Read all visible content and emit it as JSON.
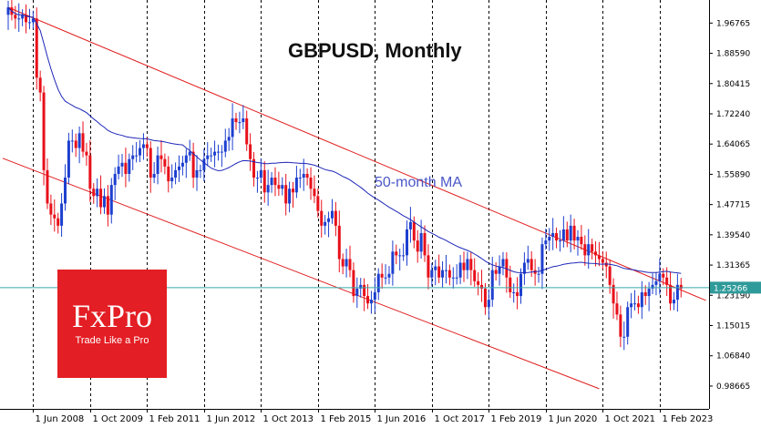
{
  "chart_data": {
    "type": "candlestick",
    "title": "GBPUSD, Monthly",
    "annotation": "50-month MA",
    "current_price": "1.25266",
    "ylim": [
      0.925,
      2.03
    ],
    "y_ticks": [
      "1.96765",
      "1.88590",
      "1.80415",
      "1.72240",
      "1.64065",
      "1.55890",
      "1.47715",
      "1.39540",
      "1.31365",
      "1.23190",
      "1.15015",
      "1.06840",
      "0.98665"
    ],
    "x_ticks": [
      "1 Jun 2008",
      "1 Oct 2009",
      "1 Feb 2011",
      "1 Jun 2012",
      "1 Oct 2013",
      "1 Feb 2015",
      "1 Jun 2016",
      "1 Oct 2017",
      "1 Feb 2019",
      "1 Jun 2020",
      "1 Oct 2021",
      "1 Feb 2023"
    ],
    "x_start": "2007-11",
    "x_end": "2023-11",
    "closes": [
      2.01,
      1.99,
      1.98,
      1.98,
      1.99,
      1.97,
      1.97,
      1.98,
      1.82,
      1.78,
      1.57,
      1.48,
      1.45,
      1.44,
      1.42,
      1.48,
      1.55,
      1.65,
      1.65,
      1.63,
      1.67,
      1.62,
      1.61,
      1.52,
      1.5,
      1.52,
      1.47,
      1.5,
      1.45,
      1.53,
      1.56,
      1.58,
      1.59,
      1.56,
      1.6,
      1.61,
      1.61,
      1.63,
      1.64,
      1.63,
      1.55,
      1.56,
      1.61,
      1.6,
      1.58,
      1.54,
      1.55,
      1.57,
      1.58,
      1.59,
      1.61,
      1.62,
      1.55,
      1.57,
      1.57,
      1.6,
      1.61,
      1.61,
      1.62,
      1.62,
      1.62,
      1.65,
      1.66,
      1.71,
      1.7,
      1.7,
      1.71,
      1.64,
      1.6,
      1.55,
      1.55,
      1.57,
      1.51,
      1.53,
      1.55,
      1.53,
      1.52,
      1.53,
      1.48,
      1.52,
      1.51,
      1.55,
      1.55,
      1.56,
      1.55,
      1.52,
      1.5,
      1.46,
      1.42,
      1.43,
      1.44,
      1.46,
      1.42,
      1.33,
      1.31,
      1.33,
      1.3,
      1.23,
      1.25,
      1.26,
      1.23,
      1.21,
      1.22,
      1.24,
      1.29,
      1.28,
      1.28,
      1.29,
      1.35,
      1.34,
      1.34,
      1.34,
      1.41,
      1.43,
      1.38,
      1.35,
      1.4,
      1.34,
      1.28,
      1.3,
      1.31,
      1.28,
      1.3,
      1.3,
      1.28,
      1.28,
      1.28,
      1.32,
      1.3,
      1.33,
      1.3,
      1.27,
      1.26,
      1.25,
      1.2,
      1.22,
      1.3,
      1.29,
      1.31,
      1.33,
      1.28,
      1.24,
      1.24,
      1.23,
      1.29,
      1.32,
      1.33,
      1.3,
      1.29,
      1.29,
      1.37,
      1.38,
      1.39,
      1.4,
      1.38,
      1.38,
      1.41,
      1.38,
      1.42,
      1.38,
      1.39,
      1.37,
      1.34,
      1.37,
      1.35,
      1.34,
      1.33,
      1.32,
      1.31,
      1.26,
      1.21,
      1.18,
      1.12,
      1.12,
      1.2,
      1.21,
      1.21,
      1.2,
      1.24,
      1.23,
      1.25,
      1.26,
      1.27,
      1.29,
      1.28,
      1.26,
      1.21,
      1.22,
      1.26,
      1.25
    ]
  },
  "logo": {
    "name": "FxPro",
    "tagline": "Trade Like a Pro"
  },
  "colors": {
    "bull": "#1d3fcf",
    "bear": "#e8101a",
    "channel": "#e01d1d",
    "ma": "#1e27b8",
    "price_line": "#37a7a7",
    "price_box": "#2f9a9a",
    "grid": "#000000"
  }
}
